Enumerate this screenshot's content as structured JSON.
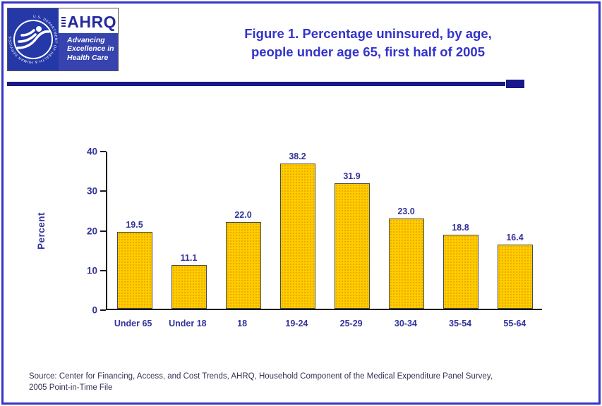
{
  "header": {
    "title_line1": "Figure 1. Percentage uninsured, by age,",
    "title_line2": "people under age 65, first half of 2005",
    "hhs_ring_text": "U.S. DEPARTMENT OF HEALTH & HUMAN SERVICES",
    "ahrq_name": "AHRQ",
    "ahrq_tagline_line1": "Advancing",
    "ahrq_tagline_line2": "Excellence in",
    "ahrq_tagline_line3": "Health Care"
  },
  "chart_data": {
    "type": "bar",
    "title": "Figure 1. Percentage uninsured, by age, people under age 65, first half of 2005",
    "categories": [
      "Under 65",
      "Under 18",
      "18",
      "19-24",
      "25-29",
      "30-34",
      "35-54",
      "55-64"
    ],
    "values": [
      19.5,
      11.1,
      22.0,
      38.2,
      31.9,
      23.0,
      18.8,
      16.4
    ],
    "xlabel": "",
    "ylabel": "Percent",
    "ylim": [
      0,
      40
    ],
    "yticks": [
      0,
      10,
      20,
      30,
      40
    ],
    "grid": false,
    "legend": false,
    "bar_color": "#FFCC00",
    "label_color": "#333399"
  },
  "footer": {
    "source_line1": "Source: Center for Financing, Access, and Cost Trends, AHRQ, Household Component of the Medical Expenditure Panel Survey,",
    "source_line2": "2005 Point-in-Time File"
  }
}
